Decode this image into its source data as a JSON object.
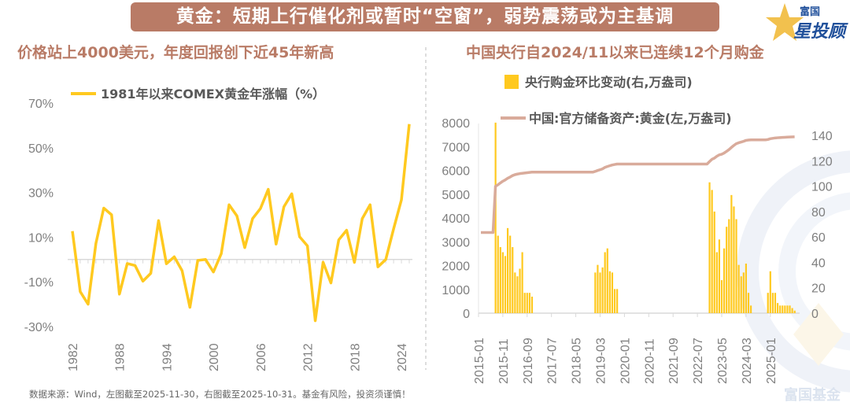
{
  "header": {
    "title": "黄金：短期上行催化剂或暂时“空窗”，弱势震荡或为主基调"
  },
  "logo": {
    "line1": "富国",
    "line2": "星投顾",
    "star_color": "#f2c14e",
    "text_color": "#1f4f9a"
  },
  "watermark": {
    "text": "富国基金"
  },
  "left_panel": {
    "subtitle": "价格站上4000美元，年度回报创下近45年新高"
  },
  "right_panel": {
    "subtitle": "中国央行自2024/11以来已连续12个月购金"
  },
  "footer": {
    "text": "数据来源：Wind，左图截至2025-11-30，右图截至2025-10-31。基金有风险，投资须谨慎！"
  },
  "colors": {
    "accent": "#b97b66",
    "gold_line": "#ffc91f",
    "bar": "#ffc91f",
    "reserve_line": "#d9ab9b"
  },
  "chart_data": [
    {
      "type": "line",
      "legend": [
        "1981年以来COMEX黄金年涨幅（%）"
      ],
      "legend_placement": "top",
      "ylim": [
        -30,
        70
      ],
      "yticks": [
        "70%",
        "50%",
        "30%",
        "10%",
        "-10%",
        "-30%"
      ],
      "xticks": [
        "1982",
        "1988",
        "1994",
        "2000",
        "2006",
        "2012",
        "2018",
        "2024"
      ],
      "grid": false,
      "series": [
        {
          "name": "1981年以来COMEX黄金年涨幅（%）",
          "x": [
            1982,
            1983,
            1984,
            1985,
            1986,
            1987,
            1988,
            1989,
            1990,
            1991,
            1992,
            1993,
            1994,
            1995,
            1996,
            1997,
            1998,
            1999,
            2000,
            2001,
            2002,
            2003,
            2004,
            2005,
            2006,
            2007,
            2008,
            2009,
            2010,
            2011,
            2012,
            2013,
            2014,
            2015,
            2016,
            2017,
            2018,
            2019,
            2020,
            2021,
            2022,
            2023,
            2024,
            2025
          ],
          "values": [
            12.7,
            -14.4,
            -20,
            7.2,
            23,
            20,
            -15.5,
            -1.8,
            -2.7,
            -9.7,
            -6.2,
            17.4,
            -1.9,
            1.2,
            -5,
            -21.4,
            -0.4,
            0,
            -5.6,
            2.6,
            24.5,
            19.5,
            5.3,
            18.3,
            22.8,
            31.4,
            6.9,
            23.6,
            29.4,
            10.2,
            6.1,
            -27.4,
            -1.2,
            -10.5,
            8.8,
            13.1,
            -1.3,
            18.3,
            24.5,
            -3.3,
            0,
            13.7,
            26.7,
            60.6
          ]
        }
      ]
    },
    {
      "type": "bar+line",
      "legend": [
        "央行购金环比变动(右,万盎司)",
        "中国:官方储备资产:黄金(左,万盎司)"
      ],
      "legend_placement": "top",
      "ylim_left": [
        0,
        8000
      ],
      "ylim_right": [
        0,
        140
      ],
      "yticks_left": [
        "8000",
        "7000",
        "6000",
        "5000",
        "4000",
        "3000",
        "2000",
        "1000",
        "0"
      ],
      "yticks_right": [
        "140",
        "120",
        "100",
        "80",
        "60",
        "40",
        "20",
        "0"
      ],
      "xticks": [
        "2015-01",
        "2015-11",
        "2016-09",
        "2017-07",
        "2018-05",
        "2019-03",
        "2020-01",
        "2020-11",
        "2021-09",
        "2022-07",
        "2023-05",
        "2024-03",
        "2025-01"
      ],
      "xrange": [
        "2015-01",
        "2025-10"
      ],
      "series": [
        {
          "name": "央行购金环比变动(右,万盎司)",
          "type": "bar",
          "axis": "right",
          "x": [
            "2015-07",
            "2015-08",
            "2015-09",
            "2015-10",
            "2015-11",
            "2015-12",
            "2016-01",
            "2016-02",
            "2016-03",
            "2016-04",
            "2016-05",
            "2016-06",
            "2016-07",
            "2016-08",
            "2016-09",
            "2016-10",
            "2018-12",
            "2019-01",
            "2019-02",
            "2019-03",
            "2019-04",
            "2019-05",
            "2019-06",
            "2019-07",
            "2019-08",
            "2019-09",
            "2022-11",
            "2022-12",
            "2023-01",
            "2023-02",
            "2023-03",
            "2023-04",
            "2023-05",
            "2023-06",
            "2023-07",
            "2023-08",
            "2023-09",
            "2023-10",
            "2023-11",
            "2023-12",
            "2024-01",
            "2024-02",
            "2024-03",
            "2024-04",
            "2024-11",
            "2024-12",
            "2025-01",
            "2025-02",
            "2025-03",
            "2025-04",
            "2025-05",
            "2025-06",
            "2025-07",
            "2025-08",
            "2025-09",
            "2025-10"
          ],
          "values": [
            150,
            61,
            52,
            48,
            45,
            67,
            61,
            52,
            32,
            29,
            35,
            48,
            16,
            16,
            16,
            13,
            32,
            38,
            32,
            36,
            48,
            51,
            33,
            32,
            19,
            19,
            103,
            97,
            80,
            48,
            58,
            26,
            51,
            68,
            74,
            93,
            84,
            74,
            38,
            29,
            32,
            39,
            16,
            6,
            16,
            33,
            16,
            16,
            8,
            6,
            6,
            6,
            6,
            6,
            4,
            2
          ]
        },
        {
          "name": "中国:官方储备资产:黄金(左,万盎司)",
          "type": "line",
          "axis": "left",
          "x": [
            "2015-01",
            "2015-06",
            "2015-07",
            "2015-08",
            "2015-09",
            "2015-10",
            "2015-11",
            "2015-12",
            "2016-01",
            "2016-02",
            "2016-03",
            "2016-04",
            "2016-05",
            "2016-10",
            "2018-11",
            "2018-12",
            "2019-01",
            "2019-02",
            "2019-03",
            "2019-04",
            "2019-05",
            "2019-06",
            "2019-07",
            "2019-08",
            "2019-09",
            "2022-10",
            "2022-11",
            "2022-12",
            "2023-01",
            "2023-02",
            "2023-03",
            "2023-04",
            "2023-05",
            "2023-06",
            "2023-07",
            "2023-08",
            "2023-09",
            "2023-10",
            "2023-11",
            "2023-12",
            "2024-01",
            "2024-02",
            "2024-03",
            "2024-04",
            "2024-10",
            "2024-11",
            "2024-12",
            "2025-01",
            "2025-02",
            "2025-03",
            "2025-04",
            "2025-05",
            "2025-06",
            "2025-07",
            "2025-08",
            "2025-09",
            "2025-10"
          ],
          "values": [
            3389,
            3389,
            5332,
            5393,
            5470,
            5542,
            5598,
            5666,
            5718,
            5779,
            5818,
            5843,
            5862,
            5924,
            5924,
            5956,
            5994,
            6026,
            6062,
            6123,
            6161,
            6194,
            6226,
            6245,
            6264,
            6264,
            6367,
            6464,
            6512,
            6592,
            6650,
            6676,
            6727,
            6795,
            6869,
            6962,
            7046,
            7120,
            7158,
            7187,
            7219,
            7258,
            7274,
            7280,
            7280,
            7296,
            7329,
            7345,
            7361,
            7370,
            7377,
            7383,
            7390,
            7396,
            7402,
            7406,
            7409
          ]
        }
      ]
    }
  ]
}
